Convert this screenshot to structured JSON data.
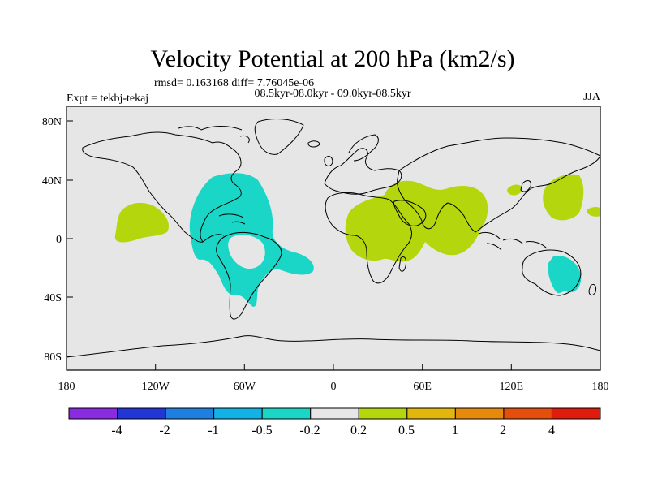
{
  "title": "Velocity Potential at 200 hPa (km2/s)",
  "stats": "rmsd= 0.163168 diff= 7.76045e-06",
  "period": "08.5kyr-08.0kyr - 09.0kyr-08.5kyr",
  "experiment": "Expt = tekbj-tekaj",
  "season": "JJA",
  "lat_ticks": [
    "80N",
    "40N",
    "0",
    "40S",
    "80S"
  ],
  "lon_ticks": [
    "180",
    "120W",
    "60W",
    "0",
    "60E",
    "120E",
    "180"
  ],
  "colorbar": {
    "colors": [
      "#8a2be2",
      "#2236d6",
      "#1e7fe0",
      "#12b2e6",
      "#1ad6c6",
      "#e6e6e6",
      "#b4d60c",
      "#e2b60c",
      "#e68a0c",
      "#e4500c",
      "#e01c0c"
    ],
    "labels": [
      "-4",
      "-2",
      "-1",
      "-0.5",
      "-0.2",
      "0.2",
      "0.5",
      "1",
      "2",
      "4"
    ]
  },
  "colors": {
    "ocean": "#e6e6e6",
    "negative_anomaly": "#1ad6c6",
    "positive_anomaly": "#b4d60c"
  }
}
